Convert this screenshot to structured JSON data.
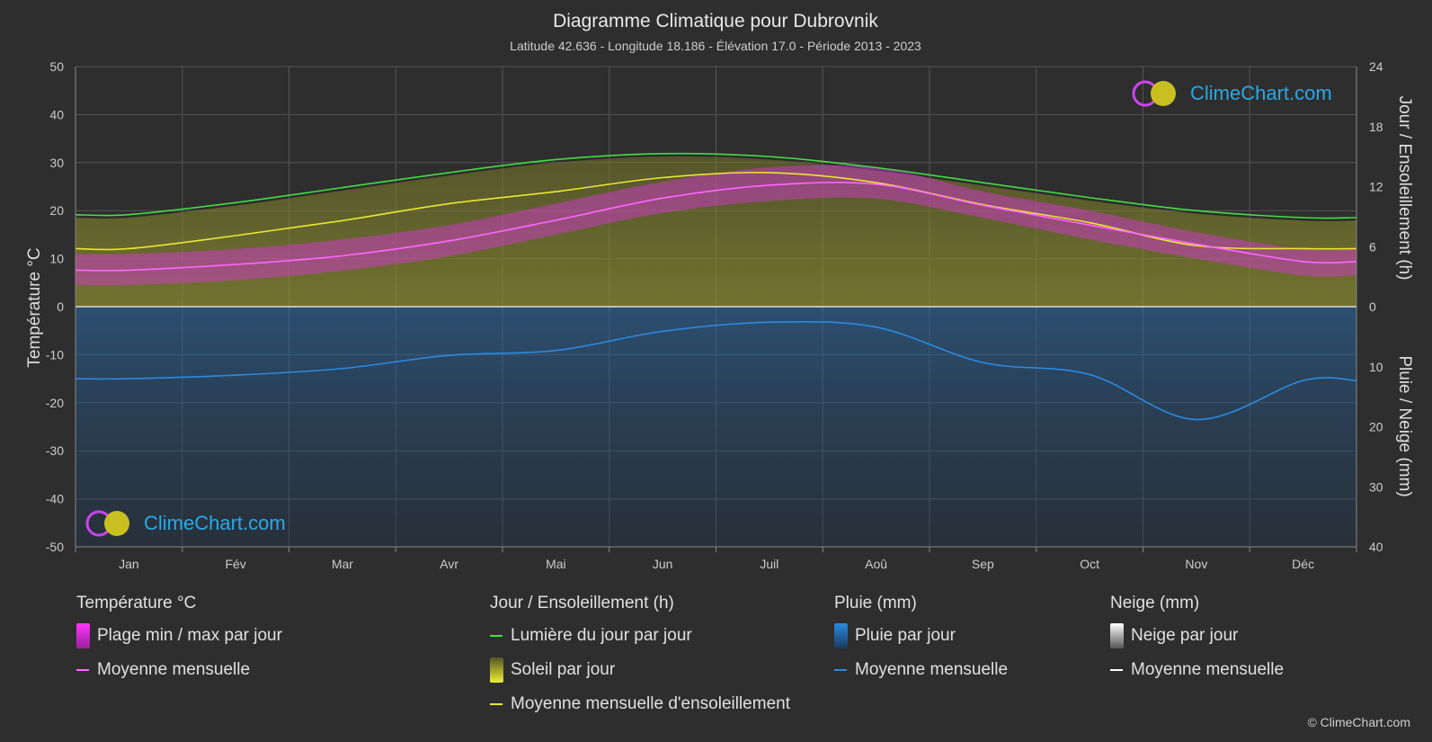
{
  "header": {
    "title": "Diagramme Climatique pour Dubrovnik",
    "subtitle": "Latitude 42.636 - Longitude 18.186 - Élévation 17.0 - Période 2013 - 2023"
  },
  "axes": {
    "left_label": "Température °C",
    "right_top_label": "Jour / Ensoleillement (h)",
    "right_bottom_label": "Pluie / Neige (mm)"
  },
  "logo": {
    "text": "ClimeChart.com"
  },
  "copyright": "© ClimeChart.com",
  "legend": {
    "temperature": {
      "heading": "Température °C",
      "range": "Plage min / max par jour",
      "mean": "Moyenne mensuelle"
    },
    "sun": {
      "heading": "Jour / Ensoleillement (h)",
      "daylight": "Lumière du jour par jour",
      "sunshine": "Soleil par jour",
      "sun_mean": "Moyenne mensuelle d'ensoleillement"
    },
    "rain": {
      "heading": "Pluie (mm)",
      "daily": "Pluie par jour",
      "mean": "Moyenne mensuelle"
    },
    "snow": {
      "heading": "Neige (mm)",
      "daily": "Neige par jour",
      "mean": "Moyenne mensuelle"
    }
  },
  "colors": {
    "background": "#2e2e2e",
    "daylight": "#44dd44",
    "sunshine_mean": "#e8e830",
    "temp_mean": "#ff66ff",
    "temp_range": "#dd33dd",
    "sunshine_fill": "#8a8a2e",
    "rain": "#2a8ae0",
    "snow": "#ffffff"
  },
  "chart_data": {
    "type": "area",
    "categories": [
      "Jan",
      "Fév",
      "Mar",
      "Avr",
      "Mai",
      "Jun",
      "Juil",
      "Aoû",
      "Sep",
      "Oct",
      "Nov",
      "Déc"
    ],
    "y_left": {
      "min": -50,
      "max": 50,
      "ticks": [
        50,
        40,
        30,
        20,
        10,
        0,
        -10,
        -20,
        -30,
        -40,
        -50
      ]
    },
    "y_right_top": {
      "min": 0,
      "max": 24,
      "ticks": [
        24,
        18,
        12,
        6,
        0
      ]
    },
    "y_right_bottom": {
      "min": 0,
      "max": 40,
      "ticks": [
        10,
        20,
        30,
        40
      ]
    },
    "grid": true,
    "series": [
      {
        "name": "Lumière du jour par jour",
        "axis": "hours",
        "values": [
          9.2,
          10.4,
          11.9,
          13.4,
          14.7,
          15.3,
          15.0,
          13.9,
          12.4,
          10.9,
          9.6,
          8.9
        ]
      },
      {
        "name": "Moyenne mensuelle d'ensoleillement",
        "axis": "hours",
        "values": [
          5.8,
          7.1,
          8.6,
          10.3,
          11.5,
          12.9,
          13.4,
          12.4,
          10.2,
          8.4,
          6.1,
          5.8
        ]
      },
      {
        "name": "Moyenne mensuelle",
        "axis": "temperature",
        "values": [
          7.6,
          8.8,
          10.6,
          13.7,
          18.0,
          22.6,
          25.3,
          25.5,
          21.1,
          17.0,
          13.0,
          9.4
        ]
      },
      {
        "name": "Moyenne mensuelle",
        "axis": "precipitation",
        "values": [
          12.0,
          11.4,
          10.3,
          8.1,
          7.3,
          4.1,
          2.6,
          3.4,
          9.3,
          11.3,
          18.8,
          12.3
        ]
      }
    ],
    "temp_range": {
      "min": [
        4.5,
        5.5,
        7.5,
        10.5,
        15.0,
        19.5,
        22.0,
        22.5,
        18.5,
        14.0,
        10.0,
        6.5
      ],
      "max": [
        11.0,
        12.0,
        14.0,
        17.0,
        21.5,
        26.0,
        29.0,
        29.0,
        24.0,
        20.0,
        15.5,
        12.0
      ]
    }
  }
}
